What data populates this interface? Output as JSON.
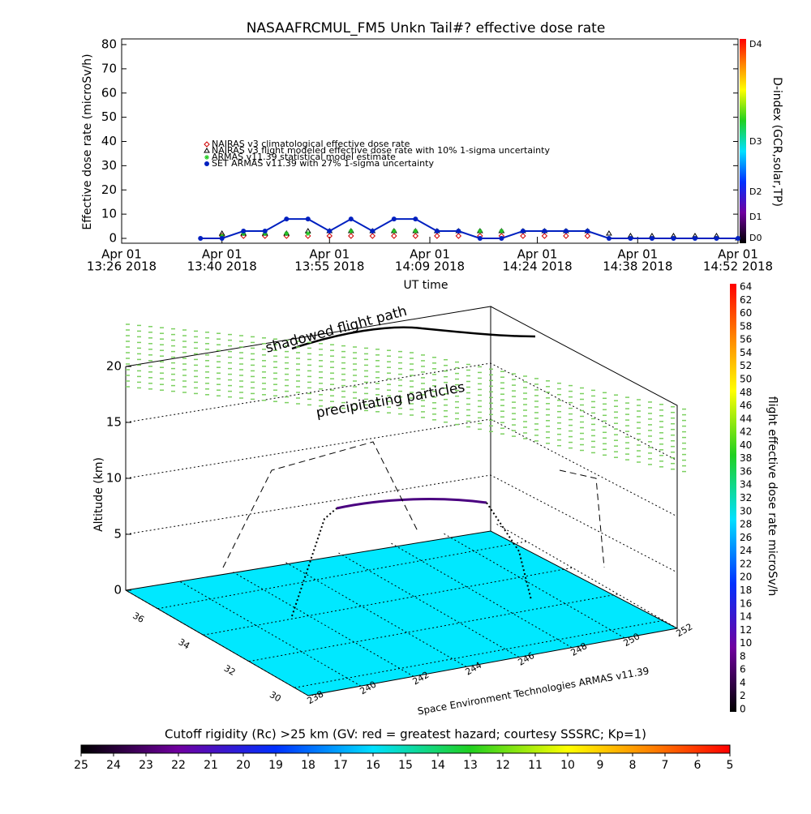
{
  "chart_data": [
    {
      "type": "line",
      "title": "NASAAFRCMUL_FM5 Unkn Tail#? effective dose rate",
      "x_label": "UT time",
      "y_label": "Effective dose rate (microSv/h)",
      "xlim": [
        "13:26",
        "14:52"
      ],
      "xticks": [
        {
          "value": "13:26",
          "label": [
            "Apr 01",
            "13:26 2018"
          ]
        },
        {
          "value": "13:40",
          "label": [
            "Apr 01",
            "13:40 2018"
          ]
        },
        {
          "value": "13:55",
          "label": [
            "Apr 01",
            "13:55 2018"
          ]
        },
        {
          "value": "14:09",
          "label": [
            "Apr 01",
            "14:09 2018"
          ]
        },
        {
          "value": "14:24",
          "label": [
            "Apr 01",
            "14:24 2018"
          ]
        },
        {
          "value": "14:38",
          "label": [
            "Apr 01",
            "14:38 2018"
          ]
        },
        {
          "value": "14:52",
          "label": [
            "Apr 01",
            "14:52 2018"
          ]
        }
      ],
      "ylim": [
        0,
        80
      ],
      "yticks": [
        0,
        10,
        20,
        30,
        40,
        50,
        60,
        70,
        80
      ],
      "x": [
        "13:37",
        "13:40",
        "13:43",
        "13:46",
        "13:49",
        "13:52",
        "13:55",
        "13:58",
        "14:01",
        "14:04",
        "14:07",
        "14:10",
        "14:13",
        "14:16",
        "14:19",
        "14:22",
        "14:25",
        "14:28",
        "14:31",
        "14:34",
        "14:37",
        "14:40",
        "14:43",
        "14:46",
        "14:49",
        "14:52"
      ],
      "series": [
        {
          "name": "NAIRAS v3 climatological effective dose rate",
          "color": "#d00000",
          "marker": "diamond",
          "values": [
            null,
            1,
            1,
            1,
            1,
            1,
            1,
            1,
            1,
            1,
            1,
            1,
            1,
            1,
            1,
            1,
            1,
            1,
            1,
            null,
            null,
            null,
            null,
            null,
            null,
            null
          ]
        },
        {
          "name": "NAIRAS v3 flight modeled effective dose rate with 10% 1-sigma uncertainty",
          "color": "#000000",
          "marker": "triangle",
          "values": [
            null,
            2,
            2,
            2,
            2,
            3,
            3,
            3,
            3,
            3,
            3,
            3,
            3,
            3,
            3,
            3,
            3,
            3,
            3,
            2,
            1,
            1,
            1,
            1,
            1,
            0
          ]
        },
        {
          "name": "ARMAS v11.39 statistical model estimate",
          "color": "#22cc22",
          "marker": "asterisk",
          "values": [
            null,
            1,
            2,
            2,
            2,
            2,
            3,
            3,
            3,
            3,
            3,
            3,
            3,
            3,
            3,
            3,
            3,
            3,
            3,
            null,
            null,
            null,
            null,
            null,
            null,
            null
          ]
        },
        {
          "name": "SET ARMAS v11.39 with 27% 1-sigma uncertainty",
          "color": "#0020c0",
          "marker": "circle",
          "values": [
            0,
            0,
            3,
            3,
            8,
            8,
            3,
            8,
            3,
            8,
            8,
            3,
            3,
            0,
            0,
            3,
            3,
            3,
            3,
            0,
            0,
            0,
            0,
            0,
            0,
            0
          ]
        }
      ]
    },
    {
      "type": "colorbar",
      "label": "D-index (GCR,solar,TP)",
      "ticks": [
        "D0",
        "D1",
        "D2",
        "D3",
        "D4"
      ]
    },
    {
      "type": "surface3d",
      "y_label": "Altitude (km)",
      "zticks": [
        0,
        5,
        10,
        15,
        20
      ],
      "lat_ticks": [
        30,
        32,
        34,
        36
      ],
      "lon_ticks": [
        238,
        240,
        242,
        244,
        246,
        248,
        250,
        252
      ],
      "annotations": [
        "shadowed flight path",
        "precipitating particles"
      ],
      "credit": "Space Environment Technologies ARMAS v11.39"
    },
    {
      "type": "colorbar",
      "label": "flight effective dose rate microSv/h",
      "ylim": [
        0,
        64
      ],
      "ticks": [
        0,
        2,
        4,
        6,
        8,
        10,
        12,
        14,
        16,
        18,
        20,
        22,
        24,
        26,
        28,
        30,
        32,
        34,
        36,
        38,
        40,
        42,
        44,
        46,
        48,
        50,
        52,
        54,
        56,
        58,
        60,
        62,
        64
      ]
    },
    {
      "type": "colorbar",
      "label": "Cutoff rigidity (Rc) >25 km (GV: red = greatest hazard; courtesy SSSRC; Kp=1)",
      "xlim": [
        25,
        5
      ],
      "ticks": [
        25,
        24,
        23,
        22,
        21,
        20,
        19,
        18,
        17,
        16,
        15,
        14,
        13,
        12,
        11,
        10,
        9,
        8,
        7,
        6,
        5
      ]
    }
  ]
}
